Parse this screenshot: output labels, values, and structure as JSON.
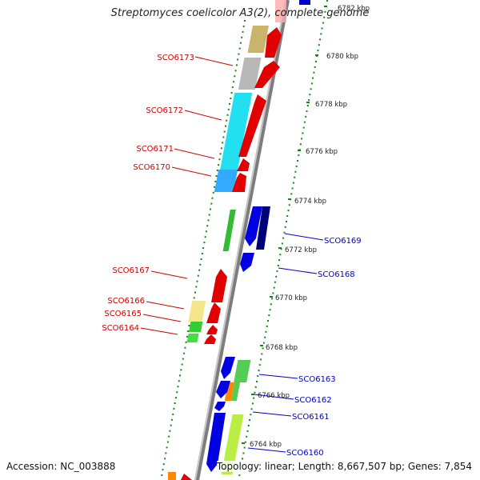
{
  "header": {
    "title": "Streptomyces coelicolor A3(2), complete genome"
  },
  "footer": {
    "accession": "Accession: NC_003888",
    "topology": "Topology: linear; Length: 8,667,507 bp; Genes: 7,854"
  },
  "colors": {
    "reverse": "#d90000",
    "forward": "#0000c8",
    "backbone": "#9a9a9a",
    "ticks": "#118811"
  },
  "ruler": [
    {
      "label": "6782 kbp"
    },
    {
      "label": "6780 kbp"
    },
    {
      "label": "6778 kbp"
    },
    {
      "label": "6776 kbp"
    },
    {
      "label": "6774 kbp"
    },
    {
      "label": "6772 kbp"
    },
    {
      "label": "6770 kbp"
    },
    {
      "label": "6768 kbp"
    },
    {
      "label": "6766 kbp"
    },
    {
      "label": "6764 kbp"
    }
  ],
  "genes_left": [
    {
      "id": "SCO6173"
    },
    {
      "id": "SCO6172"
    },
    {
      "id": "SCO6171"
    },
    {
      "id": "SCO6170"
    },
    {
      "id": "SCO6167"
    },
    {
      "id": "SCO6166"
    },
    {
      "id": "SCO6165"
    },
    {
      "id": "SCO6164"
    }
  ],
  "genes_right": [
    {
      "id": "SCO6169"
    },
    {
      "id": "SCO6168"
    },
    {
      "id": "SCO6163"
    },
    {
      "id": "SCO6162"
    },
    {
      "id": "SCO6161"
    },
    {
      "id": "SCO6160"
    }
  ]
}
